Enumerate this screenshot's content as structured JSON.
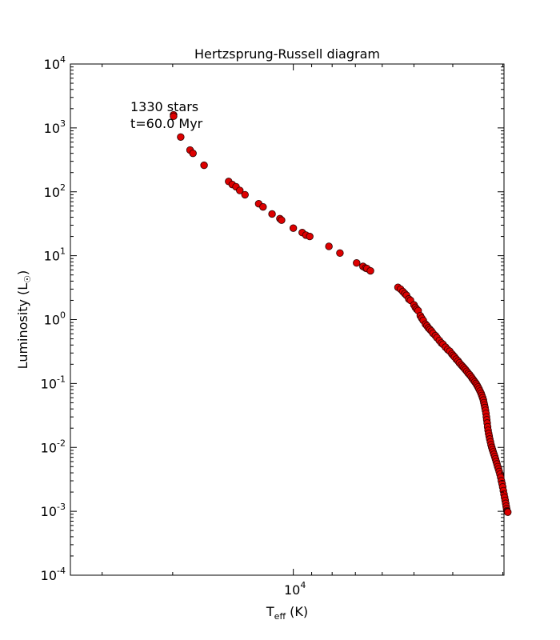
{
  "chart_data": {
    "type": "scatter",
    "title": "Hertzsprung-Russell diagram",
    "xlabel": {
      "main": "T",
      "sub": "eff",
      "unit": " (K)"
    },
    "ylabel": {
      "main": "Luminosity (L",
      "sub": "☉",
      "close": ")"
    },
    "annotations": [
      "1330 stars",
      "t=60.0 Myr"
    ],
    "x_scale": "log-reversed",
    "y_scale": "log",
    "xlim": [
      36000,
      2980
    ],
    "ylim": [
      0.0001,
      10000
    ],
    "x_tick_labels": [
      {
        "value": 10000,
        "mantissa": "10",
        "exponent": "4"
      }
    ],
    "y_tick_labels": [
      {
        "value": 10000,
        "mantissa": "10",
        "exponent": "4"
      },
      {
        "value": 1000,
        "mantissa": "10",
        "exponent": "3"
      },
      {
        "value": 100,
        "mantissa": "10",
        "exponent": "2"
      },
      {
        "value": 10,
        "mantissa": "10",
        "exponent": "1"
      },
      {
        "value": 1,
        "mantissa": "10",
        "exponent": "0"
      },
      {
        "value": 0.1,
        "mantissa": "10",
        "exponent": "-1"
      },
      {
        "value": 0.01,
        "mantissa": "10",
        "exponent": "-2"
      },
      {
        "value": 0.001,
        "mantissa": "10",
        "exponent": "-3"
      },
      {
        "value": 0.0001,
        "mantissa": "10",
        "exponent": "-4"
      }
    ],
    "marker_color": "#dd0000",
    "marker_edge": "#2a0000",
    "points": [
      [
        19900,
        1600
      ],
      [
        19900,
        1520
      ],
      [
        19100,
        720
      ],
      [
        18100,
        450
      ],
      [
        17800,
        400
      ],
      [
        16700,
        260
      ],
      [
        14500,
        145
      ],
      [
        14200,
        130
      ],
      [
        13900,
        120
      ],
      [
        13600,
        105
      ],
      [
        13200,
        90
      ],
      [
        12200,
        65
      ],
      [
        11900,
        58
      ],
      [
        11300,
        45
      ],
      [
        10800,
        38
      ],
      [
        10700,
        36
      ],
      [
        10000,
        27
      ],
      [
        9500,
        23
      ],
      [
        9300,
        21
      ],
      [
        9100,
        20
      ],
      [
        8150,
        14
      ],
      [
        7650,
        11
      ],
      [
        6950,
        7.7
      ],
      [
        6700,
        6.8
      ],
      [
        6600,
        6.4
      ],
      [
        6550,
        6.3
      ],
      [
        6420,
        5.8
      ],
      [
        5480,
        3.2
      ],
      [
        5400,
        3.0
      ],
      [
        5330,
        2.75
      ],
      [
        5270,
        2.55
      ],
      [
        5220,
        2.4
      ],
      [
        5150,
        2.1
      ],
      [
        5100,
        2.0
      ],
      [
        5000,
        1.7
      ],
      [
        4960,
        1.55
      ],
      [
        4920,
        1.45
      ],
      [
        4880,
        1.38
      ],
      [
        4820,
        1.15
      ],
      [
        4780,
        1.05
      ],
      [
        4740,
        0.97
      ],
      [
        4680,
        0.85
      ],
      [
        4640,
        0.8
      ],
      [
        4600,
        0.74
      ],
      [
        4560,
        0.7
      ],
      [
        4520,
        0.66
      ],
      [
        4480,
        0.61
      ],
      [
        4420,
        0.56
      ],
      [
        4380,
        0.52
      ],
      [
        4320,
        0.47
      ],
      [
        4270,
        0.43
      ],
      [
        4230,
        0.41
      ],
      [
        4170,
        0.37
      ],
      [
        4120,
        0.34
      ],
      [
        4070,
        0.32
      ],
      [
        4020,
        0.29
      ],
      [
        3990,
        0.275
      ],
      [
        3960,
        0.26
      ],
      [
        3920,
        0.24
      ],
      [
        3880,
        0.225
      ],
      [
        3850,
        0.21
      ],
      [
        3810,
        0.195
      ],
      [
        3780,
        0.185
      ],
      [
        3750,
        0.175
      ],
      [
        3720,
        0.165
      ],
      [
        3690,
        0.155
      ],
      [
        3660,
        0.145
      ],
      [
        3630,
        0.137
      ],
      [
        3600,
        0.128
      ],
      [
        3575,
        0.12
      ],
      [
        3550,
        0.113
      ],
      [
        3525,
        0.106
      ],
      [
        3500,
        0.1
      ],
      [
        3480,
        0.094
      ],
      [
        3460,
        0.088
      ],
      [
        3440,
        0.082
      ],
      [
        3420,
        0.076
      ],
      [
        3400,
        0.07
      ],
      [
        3385,
        0.065
      ],
      [
        3370,
        0.06
      ],
      [
        3355,
        0.055
      ],
      [
        3345,
        0.05
      ],
      [
        3335,
        0.046
      ],
      [
        3325,
        0.042
      ],
      [
        3315,
        0.038
      ],
      [
        3305,
        0.034
      ],
      [
        3297,
        0.03
      ],
      [
        3290,
        0.027
      ],
      [
        3282,
        0.024
      ],
      [
        3274,
        0.021
      ],
      [
        3265,
        0.0185
      ],
      [
        3255,
        0.0165
      ],
      [
        3245,
        0.015
      ],
      [
        3234,
        0.0135
      ],
      [
        3222,
        0.0122
      ],
      [
        3210,
        0.011
      ],
      [
        3197,
        0.01
      ],
      [
        3184,
        0.0092
      ],
      [
        3171,
        0.0085
      ],
      [
        3157,
        0.0078
      ],
      [
        3143,
        0.0072
      ],
      [
        3130,
        0.0066
      ],
      [
        3116,
        0.006
      ],
      [
        3103,
        0.0055
      ],
      [
        3090,
        0.005
      ],
      [
        3076,
        0.0046
      ],
      [
        3063,
        0.0042
      ],
      [
        3050,
        0.0038
      ],
      [
        3037,
        0.0034
      ],
      [
        3025,
        0.003
      ],
      [
        3013,
        0.0027
      ],
      [
        3002,
        0.0024
      ],
      [
        2991,
        0.0021
      ],
      [
        2980,
        0.00185
      ],
      [
        2970,
        0.00165
      ],
      [
        2960,
        0.00148
      ],
      [
        2951,
        0.00133
      ],
      [
        2943,
        0.0012
      ],
      [
        2936,
        0.0011
      ],
      [
        2930,
        0.00102
      ],
      [
        2925,
        0.00099
      ],
      [
        2920,
        0.00098
      ],
      [
        2916,
        0.00097
      ]
    ]
  }
}
